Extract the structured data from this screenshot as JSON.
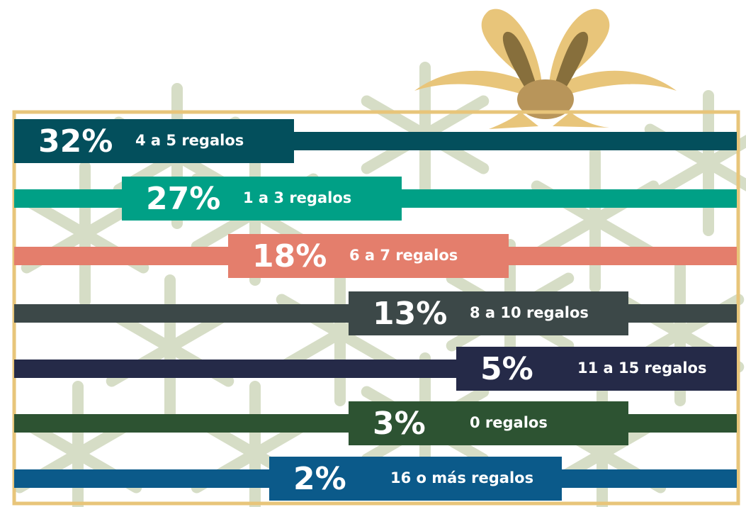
{
  "items": [
    {
      "percent": "32%",
      "label": "4 a 5 regalos",
      "color": "#034f5c"
    },
    {
      "percent": "27%",
      "label": "1 a 3 regalos",
      "color": "#00a086"
    },
    {
      "percent": "18%",
      "label": "6 a 7 regalos",
      "color": "#e47e6c"
    },
    {
      "percent": "13%",
      "label": "8 a 10 regalos",
      "color": "#3c4848"
    },
    {
      "percent": "5%",
      "label": "11 a 15 regalos",
      "color": "#252a48"
    },
    {
      "percent": "3%",
      "label": "0 regalos",
      "color": "#2d5332"
    },
    {
      "percent": "2%",
      "label": "16 o más regalos",
      "color": "#0b5a8a"
    }
  ]
}
